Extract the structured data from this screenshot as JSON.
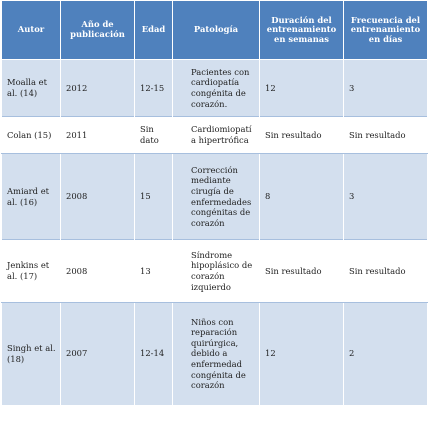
{
  "table": {
    "headers": [
      "Autor",
      "Año de publicación",
      "Edad",
      "Patología",
      "Duración del entrenamiento en semanas",
      "Frecuencia del entrenamiento en días"
    ],
    "rows": [
      {
        "autor": "Moalla et al. (14)",
        "anio": "2012",
        "edad": "12-15",
        "patologia": "Pacientes con cardiopatía congénita de corazón.",
        "duracion": "12",
        "frecuencia": "3"
      },
      {
        "autor": "Colan (15)",
        "anio": "2011",
        "edad": "Sin dato",
        "patologia": "Cardiomiopatía hipertrófica",
        "duracion": "Sin resultado",
        "frecuencia": "Sin resultado"
      },
      {
        "autor": "Amiard et al. (16)",
        "anio": "2008",
        "edad": "15",
        "patologia": "Corrección mediante cirugía de enfermedades congénitas de corazón",
        "duracion": "8",
        "frecuencia": "3"
      },
      {
        "autor": "Jenkins et al. (17)",
        "anio": "2008",
        "edad": "13",
        "patologia": "Síndrome hipoplásico de corazón izquierdo",
        "duracion": "Sin resultado",
        "frecuencia": "Sin resultado"
      },
      {
        "autor": "Singh et al. (18)",
        "anio": "2007",
        "edad": "12-14",
        "patologia": "Niños con reparación quirúrgica, debido a enfermedad congénita de corazón",
        "duracion": "12",
        "frecuencia": "2"
      }
    ]
  }
}
